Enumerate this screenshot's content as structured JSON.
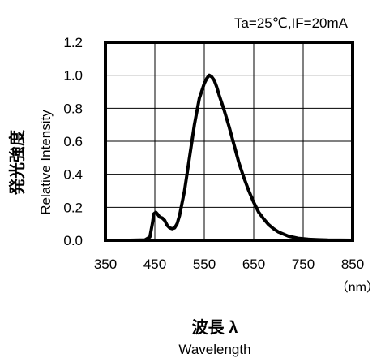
{
  "chart_data": {
    "type": "line",
    "title": "Ta=25℃,IF=20mA",
    "ylabel_jp": "発光強度",
    "ylabel": "Relative Intensity",
    "xlabel_jp": "波長 λ",
    "xlabel": "Wavelength",
    "x_unit": "（nm）",
    "xlim": [
      350,
      850
    ],
    "ylim": [
      0,
      1.2
    ],
    "x_ticks": [
      "350",
      "450",
      "550",
      "650",
      "750",
      "850"
    ],
    "y_ticks": [
      "0.0",
      "0.2",
      "0.4",
      "0.6",
      "0.8",
      "1.0",
      "1.2"
    ],
    "grid": true,
    "series": [
      {
        "x": [
          350,
          400,
          430,
          440,
          445,
          448,
          452,
          455,
          460,
          465,
          470,
          475,
          480,
          485,
          490,
          495,
          500,
          510,
          520,
          530,
          540,
          550,
          555,
          560,
          565,
          570,
          575,
          580,
          590,
          600,
          610,
          620,
          630,
          640,
          650,
          660,
          670,
          680,
          690,
          700,
          720,
          740,
          760,
          780,
          800,
          850
        ],
        "y": [
          0.0,
          0.0,
          0.002,
          0.02,
          0.1,
          0.16,
          0.17,
          0.16,
          0.14,
          0.135,
          0.12,
          0.09,
          0.075,
          0.07,
          0.075,
          0.1,
          0.15,
          0.3,
          0.5,
          0.7,
          0.86,
          0.95,
          0.98,
          1.0,
          0.99,
          0.97,
          0.93,
          0.88,
          0.79,
          0.69,
          0.58,
          0.47,
          0.38,
          0.3,
          0.23,
          0.17,
          0.13,
          0.095,
          0.07,
          0.05,
          0.025,
          0.012,
          0.006,
          0.003,
          0.001,
          0.0
        ]
      }
    ]
  }
}
